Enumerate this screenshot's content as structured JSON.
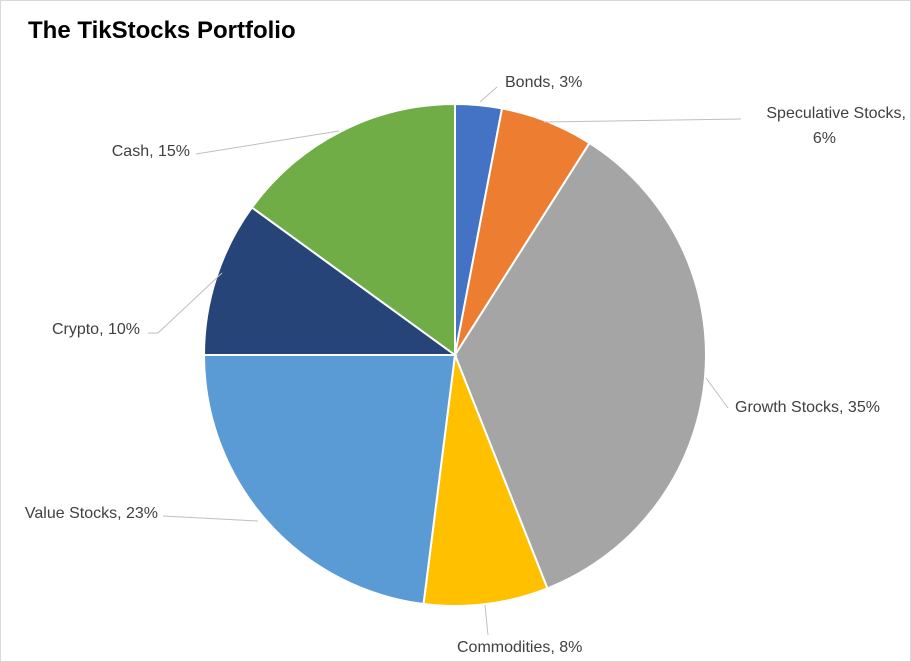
{
  "chart_data": {
    "type": "pie",
    "title": "The TikStocks Portfolio",
    "slices": [
      {
        "category": "Bonds",
        "value": 3,
        "color": "#4472C4",
        "label_lines": [
          "Bonds, 3%"
        ]
      },
      {
        "category": "Speculative Stocks",
        "value": 6,
        "color": "#ED7D31",
        "label_lines": [
          "Speculative Stocks,",
          "6%"
        ]
      },
      {
        "category": "Growth Stocks",
        "value": 35,
        "color": "#A5A5A5",
        "label_lines": [
          "Growth Stocks, 35%"
        ]
      },
      {
        "category": "Commodities",
        "value": 8,
        "color": "#FFC000",
        "label_lines": [
          "Commodities, 8%"
        ]
      },
      {
        "category": "Value Stocks",
        "value": 23,
        "color": "#5B9BD5",
        "label_lines": [
          "Value Stocks, 23%"
        ]
      },
      {
        "category": "Crypto",
        "value": 10,
        "color": "#264478",
        "label_lines": [
          "Crypto, 10%"
        ]
      },
      {
        "category": "Cash",
        "value": 15,
        "color": "#70AD47",
        "label_lines": [
          "Cash, 15%"
        ]
      }
    ],
    "start_angle": "12 o'clock",
    "direction": "clockwise",
    "legend": "none",
    "data_labels": "outside with leader lines"
  }
}
